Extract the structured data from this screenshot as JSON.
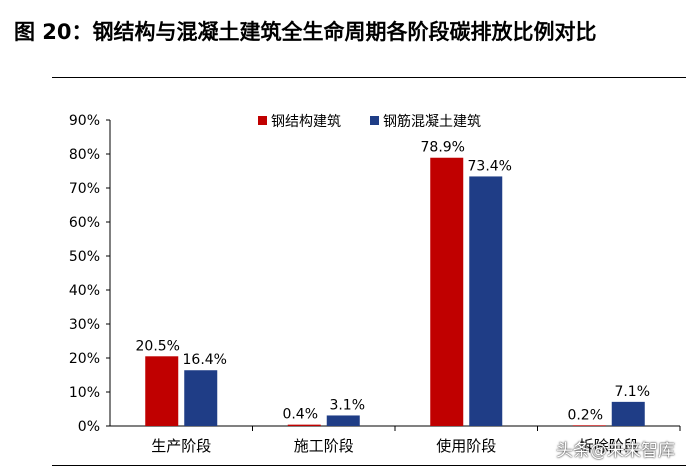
{
  "figure": {
    "title": "图 20：钢结构与混凝土建筑全生命周期各阶段碳排放比例对比",
    "watermark": "头条@未来智库"
  },
  "colors": {
    "steel": "#C00000",
    "concrete": "#1F3D86"
  },
  "chart_data": {
    "type": "bar",
    "categories": [
      "生产阶段",
      "施工阶段",
      "使用阶段",
      "拆除阶段"
    ],
    "series": [
      {
        "name": "钢结构建筑",
        "values": [
          20.5,
          0.4,
          78.9,
          0.2
        ],
        "labels": [
          "20.5%",
          "0.4%",
          "78.9%",
          "0.2%"
        ]
      },
      {
        "name": "钢筋混凝土建筑",
        "values": [
          16.4,
          3.1,
          73.4,
          7.1
        ],
        "labels": [
          "16.4%",
          "3.1%",
          "73.4%",
          "7.1%"
        ]
      }
    ],
    "ylim": [
      0,
      90
    ],
    "yticks": [
      "0%",
      "10%",
      "20%",
      "30%",
      "40%",
      "50%",
      "60%",
      "70%",
      "80%",
      "90%"
    ],
    "xlabel": "",
    "ylabel": "",
    "grid": false,
    "legend": "top-center"
  }
}
